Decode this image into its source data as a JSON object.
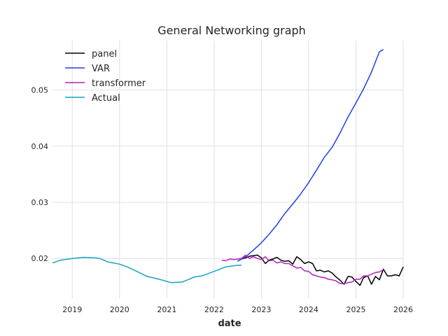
{
  "chart_data": {
    "type": "line",
    "title": "General Networking graph",
    "xlabel": "date",
    "ylabel": "",
    "x_type": "date",
    "xlim": [
      "2018-08-01",
      "2026-01-01"
    ],
    "ylim": [
      0.0128,
      0.0588
    ],
    "grid": true,
    "legend_position": "top-left",
    "xticks": [
      {
        "value": "2019-01-01",
        "label": "2019"
      },
      {
        "value": "2020-01-01",
        "label": "2020"
      },
      {
        "value": "2021-01-01",
        "label": "2021"
      },
      {
        "value": "2022-01-01",
        "label": "2022"
      },
      {
        "value": "2023-01-01",
        "label": "2023"
      },
      {
        "value": "2024-01-01",
        "label": "2024"
      },
      {
        "value": "2025-01-01",
        "label": "2025"
      },
      {
        "value": "2026-01-01",
        "label": "2026"
      }
    ],
    "yticks": [
      {
        "value": 0.02,
        "label": "0.02"
      },
      {
        "value": 0.03,
        "label": "0.03"
      },
      {
        "value": 0.04,
        "label": "0.04"
      },
      {
        "value": 0.05,
        "label": "0.05"
      }
    ],
    "series": [
      {
        "name": "panel",
        "color": "#000000",
        "x": [
          "2022-08-01",
          "2022-09-01",
          "2022-10-01",
          "2022-11-01",
          "2022-12-01",
          "2023-01-01",
          "2023-02-01",
          "2023-03-01",
          "2023-04-01",
          "2023-05-01",
          "2023-06-01",
          "2023-07-01",
          "2023-08-01",
          "2023-09-01",
          "2023-10-01",
          "2023-11-01",
          "2023-12-01",
          "2024-01-01",
          "2024-02-01",
          "2024-03-01",
          "2024-04-01",
          "2024-05-01",
          "2024-06-01",
          "2024-07-01",
          "2024-08-01",
          "2024-09-01",
          "2024-10-01",
          "2024-11-01",
          "2024-12-01",
          "2025-01-01",
          "2025-02-01",
          "2025-03-01",
          "2025-04-01",
          "2025-05-01",
          "2025-06-01",
          "2025-07-01",
          "2025-08-01",
          "2025-09-01",
          "2025-10-01",
          "2025-11-01",
          "2025-12-01",
          "2026-01-01"
        ],
        "y": [
          0.0199,
          0.0201,
          0.0204,
          0.0205,
          0.0206,
          0.0201,
          0.0191,
          0.0197,
          0.0199,
          0.0202,
          0.0197,
          0.0195,
          0.0196,
          0.019,
          0.0203,
          0.0198,
          0.0191,
          0.0194,
          0.0191,
          0.0178,
          0.0179,
          0.0176,
          0.0178,
          0.0174,
          0.0167,
          0.0161,
          0.0154,
          0.0168,
          0.0167,
          0.0159,
          0.0152,
          0.0166,
          0.0169,
          0.0154,
          0.0168,
          0.0162,
          0.0181,
          0.0169,
          0.0169,
          0.0171,
          0.0169,
          0.0185
        ]
      },
      {
        "name": "VAR",
        "color": "#1f3fe8",
        "x": [
          "2022-07-01",
          "2022-09-01",
          "2022-11-01",
          "2023-01-01",
          "2023-03-01",
          "2023-05-01",
          "2023-07-01",
          "2023-09-01",
          "2023-11-01",
          "2024-01-01",
          "2024-03-01",
          "2024-05-01",
          "2024-07-01",
          "2024-09-01",
          "2024-11-01",
          "2025-01-01",
          "2025-03-01",
          "2025-05-01",
          "2025-07-01",
          "2025-08-01"
        ],
        "y": [
          0.0195,
          0.0203,
          0.0215,
          0.0228,
          0.0243,
          0.026,
          0.028,
          0.0297,
          0.0315,
          0.0335,
          0.0357,
          0.038,
          0.0398,
          0.0424,
          0.0452,
          0.0477,
          0.0502,
          0.0532,
          0.0568,
          0.0572
        ]
      },
      {
        "name": "transformer",
        "color": "#b41fbf",
        "x": [
          "2022-03-01",
          "2022-04-01",
          "2022-05-01",
          "2022-06-01",
          "2022-07-01",
          "2022-08-01",
          "2022-09-01",
          "2022-10-01",
          "2022-11-01",
          "2022-12-01",
          "2023-01-01",
          "2023-02-01",
          "2023-03-01",
          "2023-04-01",
          "2023-05-01",
          "2023-06-01",
          "2023-07-01",
          "2023-08-01",
          "2023-09-01",
          "2023-10-01",
          "2023-11-01",
          "2023-12-01",
          "2024-01-01",
          "2024-02-01",
          "2024-03-01",
          "2024-04-01",
          "2024-05-01",
          "2024-06-01",
          "2024-07-01",
          "2024-08-01",
          "2024-09-01",
          "2024-10-01",
          "2024-11-01",
          "2024-12-01",
          "2025-01-01",
          "2025-02-01",
          "2025-03-01",
          "2025-04-01",
          "2025-05-01",
          "2025-06-01",
          "2025-07-01",
          "2025-08-01"
        ],
        "y": [
          0.0197,
          0.0196,
          0.0199,
          0.0198,
          0.0199,
          0.02,
          0.0206,
          0.02,
          0.0203,
          0.02,
          0.0198,
          0.0203,
          0.0196,
          0.0197,
          0.0192,
          0.0194,
          0.0191,
          0.0191,
          0.0187,
          0.0183,
          0.0184,
          0.0178,
          0.0177,
          0.0171,
          0.0169,
          0.0167,
          0.0166,
          0.0163,
          0.0162,
          0.016,
          0.0155,
          0.0155,
          0.0157,
          0.0158,
          0.0163,
          0.0163,
          0.0169,
          0.0169,
          0.0172,
          0.0175,
          0.0176,
          0.018
        ]
      },
      {
        "name": "Actual",
        "color": "#16a5c0",
        "x": [
          "2018-08-01",
          "2018-10-01",
          "2019-01-01",
          "2019-04-01",
          "2019-07-01",
          "2019-08-01",
          "2019-10-01",
          "2020-01-01",
          "2020-03-01",
          "2020-06-01",
          "2020-08-01",
          "2020-11-01",
          "2021-02-01",
          "2021-05-01",
          "2021-08-01",
          "2021-10-01",
          "2022-01-01",
          "2022-04-01",
          "2022-07-01",
          "2022-08-01"
        ],
        "y": [
          0.0192,
          0.0197,
          0.02,
          0.0202,
          0.0201,
          0.02,
          0.0194,
          0.019,
          0.0185,
          0.0175,
          0.0168,
          0.0163,
          0.0157,
          0.0158,
          0.0167,
          0.0169,
          0.0177,
          0.0185,
          0.0188,
          0.0188
        ]
      }
    ]
  }
}
